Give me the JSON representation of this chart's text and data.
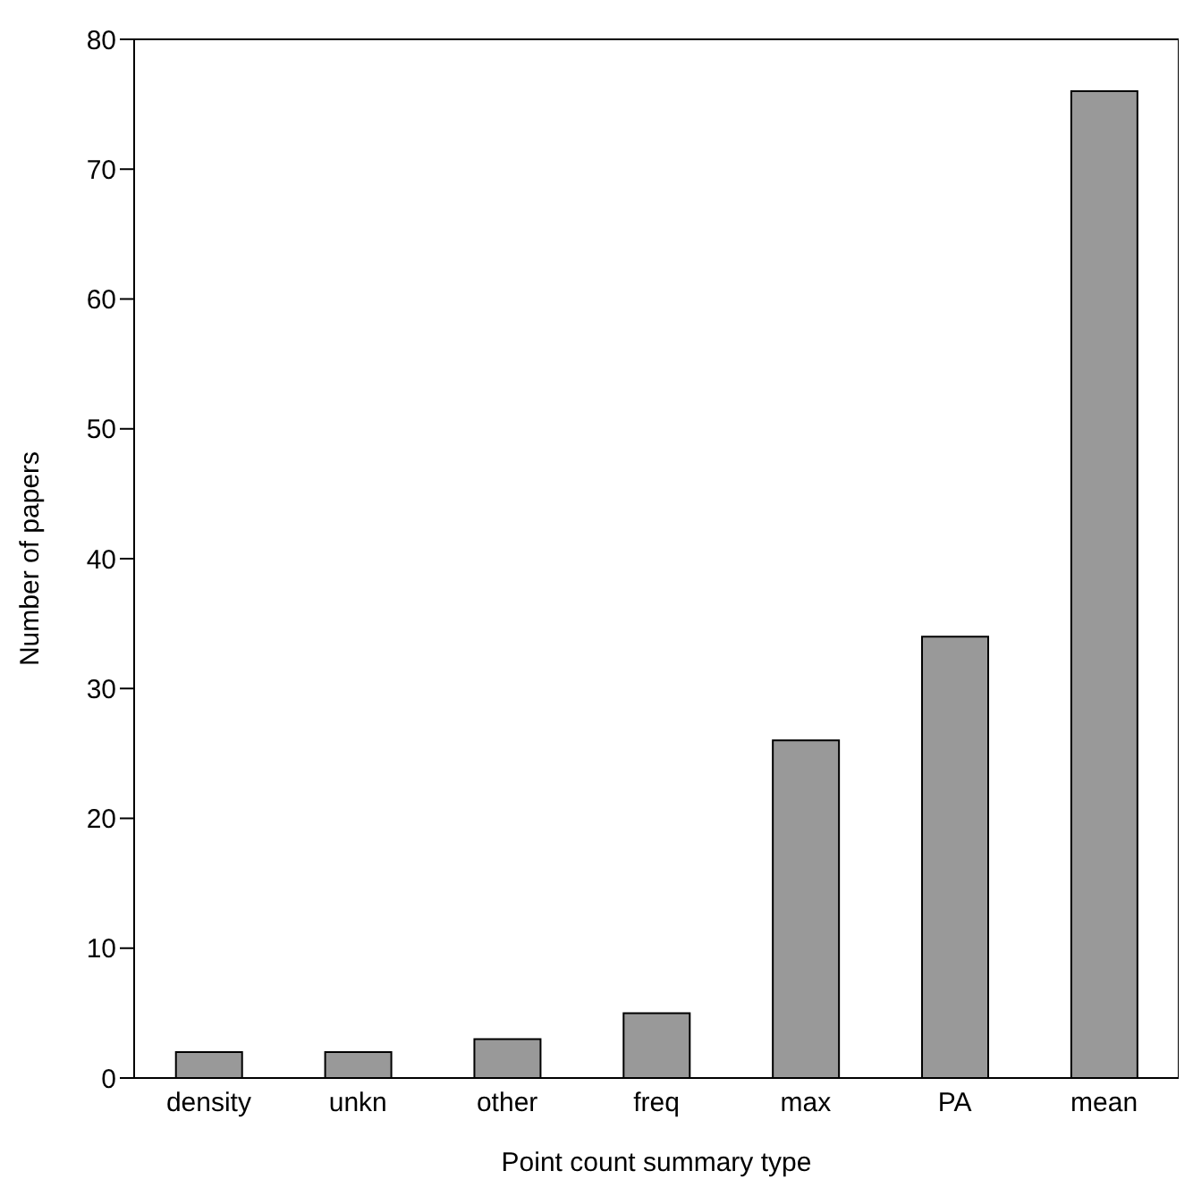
{
  "chart_data": {
    "type": "bar",
    "xlabel": "Point count summary type",
    "ylabel": "Number of papers",
    "categories": [
      "density",
      "unkn",
      "other",
      "freq",
      "max",
      "PA",
      "mean"
    ],
    "values": [
      2,
      2,
      3,
      5,
      26,
      34,
      76
    ],
    "color": "#999999",
    "ylim": [
      0,
      80
    ],
    "yticks": [
      0,
      10,
      20,
      30,
      40,
      50,
      60,
      70,
      80
    ]
  }
}
